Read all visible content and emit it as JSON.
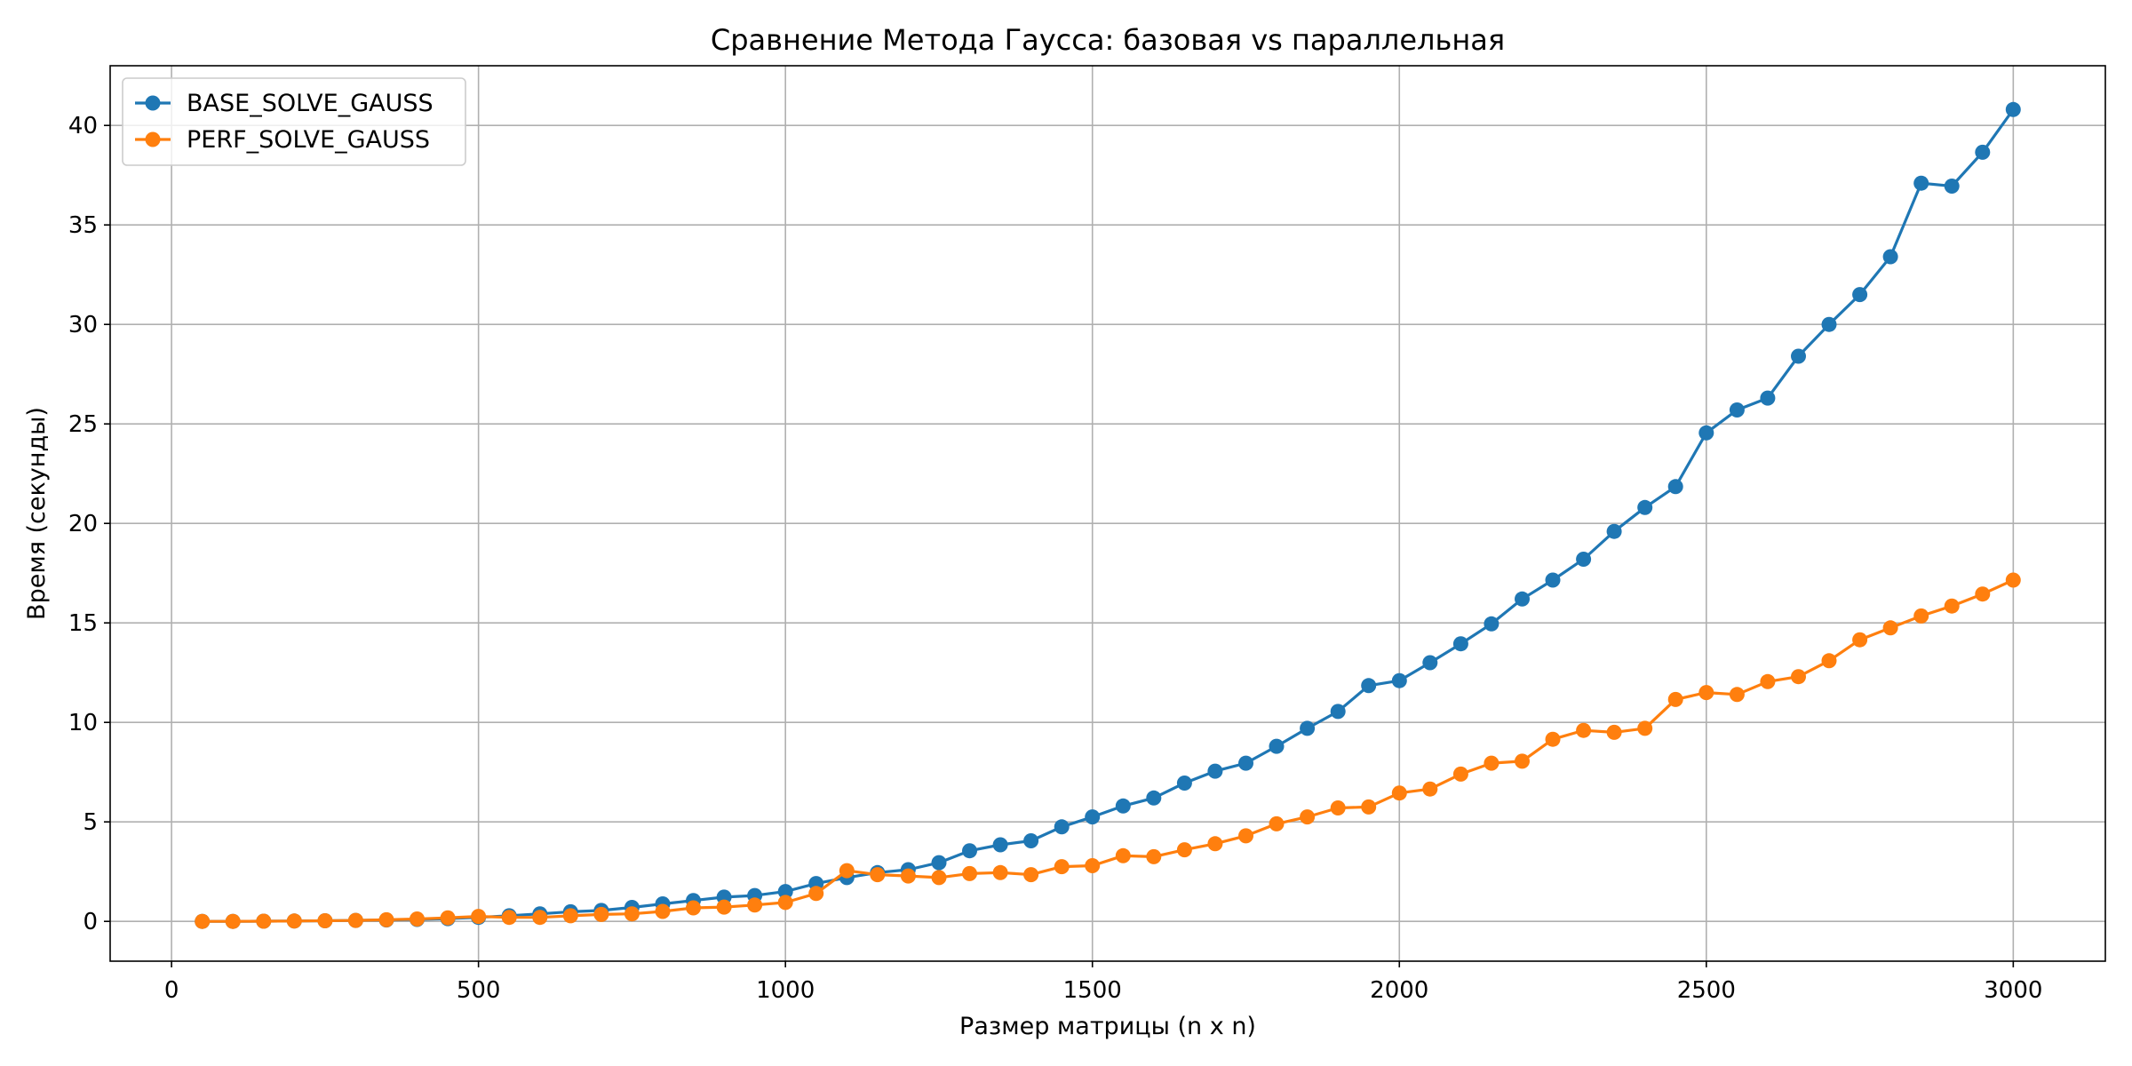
{
  "chart_data": {
    "type": "line",
    "title": "Сравнение Метода Гаусса: базовая vs параллельная",
    "xlabel": "Размер матрицы (n x n)",
    "ylabel": "Время (секунды)",
    "xlim": [
      -100,
      3150
    ],
    "ylim": [
      -2,
      43
    ],
    "xticks": [
      0,
      500,
      1000,
      1500,
      2000,
      2500,
      3000
    ],
    "yticks": [
      0,
      5,
      10,
      15,
      20,
      25,
      30,
      35,
      40
    ],
    "grid": true,
    "legend_position": "top-left",
    "x": [
      50,
      100,
      150,
      200,
      250,
      300,
      350,
      400,
      450,
      500,
      550,
      600,
      650,
      700,
      750,
      800,
      850,
      900,
      950,
      1000,
      1050,
      1100,
      1150,
      1200,
      1250,
      1300,
      1350,
      1400,
      1450,
      1500,
      1550,
      1600,
      1650,
      1700,
      1750,
      1800,
      1850,
      1900,
      1950,
      2000,
      2050,
      2100,
      2150,
      2200,
      2250,
      2300,
      2350,
      2400,
      2450,
      2500,
      2550,
      2600,
      2650,
      2700,
      2750,
      2800,
      2850,
      2900,
      2950,
      3000
    ],
    "series": [
      {
        "name": "BASE_SOLVE_GAUSS",
        "color": "#1f77b4",
        "values": [
          0.0,
          0.0,
          0.01,
          0.02,
          0.03,
          0.05,
          0.07,
          0.1,
          0.14,
          0.2,
          0.28,
          0.38,
          0.48,
          0.55,
          0.7,
          0.88,
          1.05,
          1.22,
          1.3,
          1.5,
          1.9,
          2.2,
          2.45,
          2.6,
          2.95,
          3.55,
          3.85,
          4.05,
          4.75,
          5.25,
          5.8,
          6.2,
          6.95,
          7.55,
          7.95,
          8.8,
          9.7,
          10.55,
          11.85,
          12.1,
          13.0,
          13.95,
          14.95,
          16.2,
          17.15,
          18.2,
          19.6,
          20.8,
          21.85,
          24.55,
          25.7,
          26.3,
          28.4,
          30.0,
          31.5,
          33.4,
          37.1,
          36.95,
          38.65,
          40.8
        ]
      },
      {
        "name": "PERF_SOLVE_GAUSS",
        "color": "#ff7f0e",
        "values": [
          0.0,
          0.0,
          0.01,
          0.02,
          0.03,
          0.05,
          0.08,
          0.12,
          0.18,
          0.25,
          0.2,
          0.2,
          0.28,
          0.35,
          0.38,
          0.5,
          0.68,
          0.72,
          0.82,
          0.95,
          1.4,
          2.55,
          2.35,
          2.28,
          2.2,
          2.4,
          2.45,
          2.35,
          2.75,
          2.8,
          3.3,
          3.25,
          3.6,
          3.9,
          4.3,
          4.9,
          5.25,
          5.7,
          5.75,
          6.45,
          6.65,
          7.4,
          7.95,
          8.05,
          9.15,
          9.6,
          9.5,
          9.7,
          11.15,
          11.5,
          11.4,
          12.05,
          12.3,
          13.1,
          14.15,
          14.75,
          15.35,
          15.85,
          16.45,
          17.15
        ]
      }
    ]
  }
}
